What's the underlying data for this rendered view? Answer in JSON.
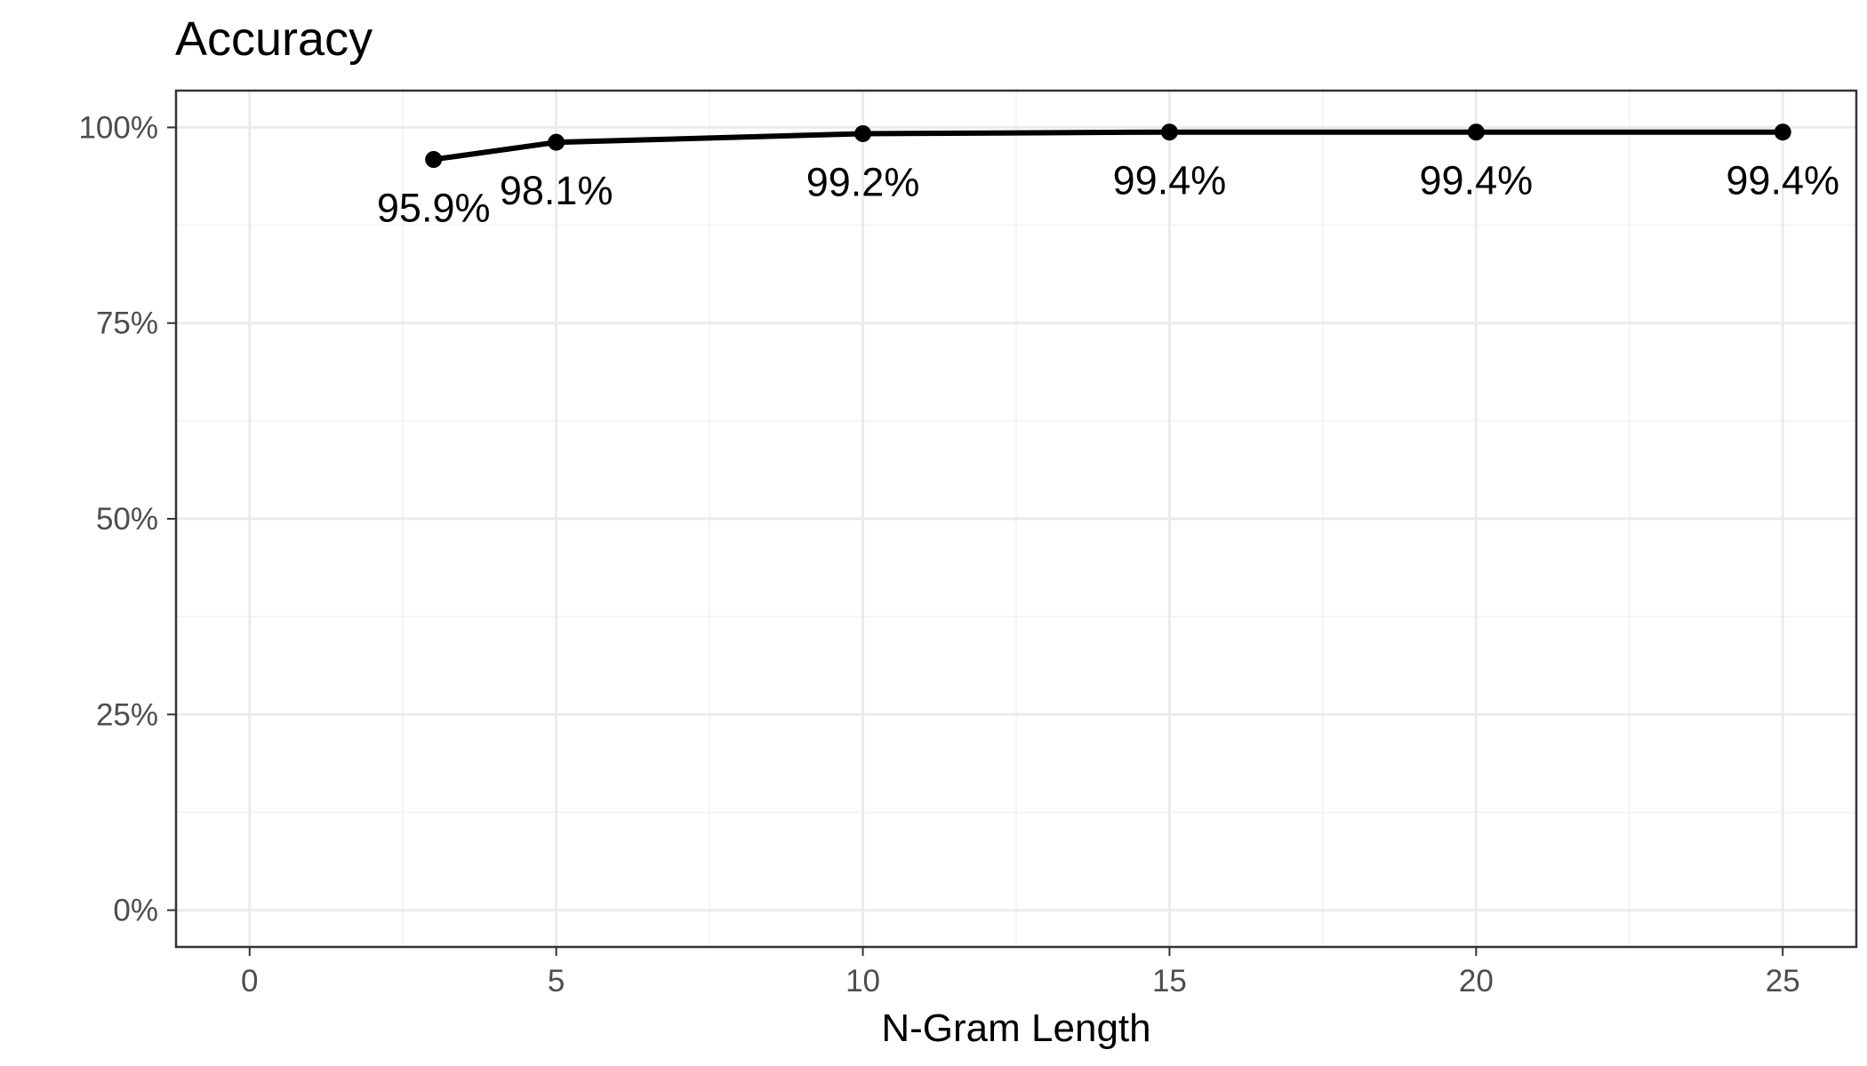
{
  "chart_data": {
    "type": "line",
    "title": "Accuracy",
    "xlabel": "N-Gram Length",
    "ylabel": "",
    "x": [
      3,
      5,
      10,
      15,
      20,
      25
    ],
    "values": [
      0.959,
      0.981,
      0.992,
      0.994,
      0.994,
      0.994
    ],
    "labels": [
      "95.9%",
      "98.1%",
      "99.2%",
      "99.4%",
      "99.4%",
      "99.4%"
    ],
    "xlim": [
      -1.2,
      26.2
    ],
    "ylim": [
      -0.047,
      1.047
    ],
    "xticks": [
      0,
      5,
      10,
      15,
      20,
      25
    ],
    "xtick_labels": [
      "0",
      "5",
      "10",
      "15",
      "20",
      "25"
    ],
    "yticks": [
      0,
      0.25,
      0.5,
      0.75,
      1.0
    ],
    "ytick_labels": [
      "0%",
      "25%",
      "50%",
      "75%",
      "100%"
    ],
    "grid": true,
    "legend": "none",
    "line_color": "#000000"
  }
}
